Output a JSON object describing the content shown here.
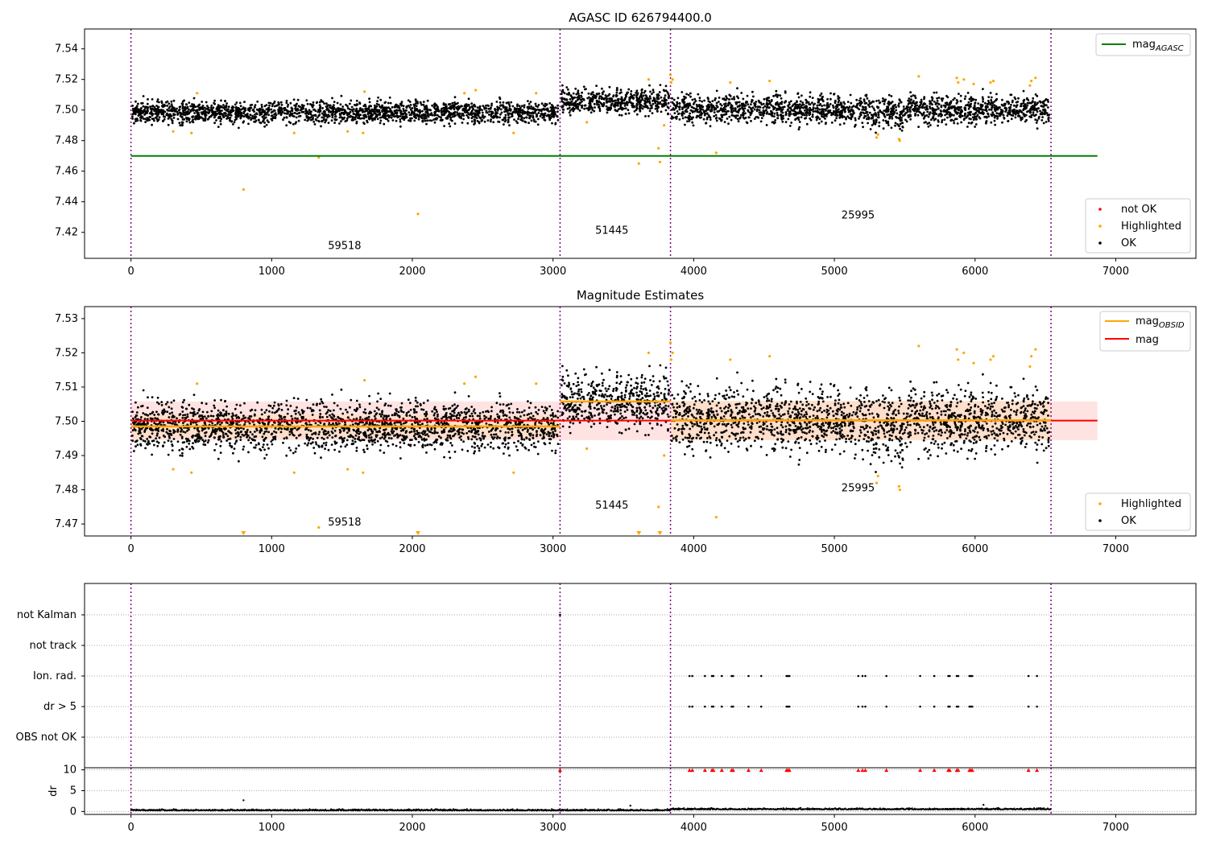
{
  "chart_data": [
    {
      "type": "scatter",
      "title": "AGASC ID 626794400.0",
      "xlim": [
        -330,
        7570
      ],
      "ylim": [
        7.403,
        7.553
      ],
      "x_ticks": [
        0,
        1000,
        2000,
        3000,
        4000,
        5000,
        6000,
        7000
      ],
      "y_ticks": [
        7.42,
        7.44,
        7.46,
        7.48,
        7.5,
        7.52,
        7.54
      ],
      "y_tick_labels": [
        "7.42",
        "7.44",
        "7.46",
        "7.48",
        "7.50",
        "7.52",
        "7.54"
      ],
      "obs_boundaries": [
        0,
        3050,
        3835,
        6540
      ],
      "obs_labels": [
        {
          "x": 1400,
          "y": 7.409,
          "text": "59518"
        },
        {
          "x": 3300,
          "y": 7.419,
          "text": "51445"
        },
        {
          "x": 5050,
          "y": 7.429,
          "text": "25995"
        }
      ],
      "segments": [
        {
          "x0": 0,
          "x1": 3050,
          "mean": 7.4985,
          "spread": 0.0035
        },
        {
          "x0": 3050,
          "x1": 3835,
          "mean": 7.5058,
          "spread": 0.0042
        },
        {
          "x0": 3835,
          "x1": 6540,
          "mean": 7.5005,
          "spread": 0.0045
        }
      ],
      "dips": [
        {
          "x": 5300,
          "depth": 0.01
        },
        {
          "x": 5460,
          "depth": 0.01
        }
      ],
      "highlighted": [
        [
          300,
          7.486
        ],
        [
          430,
          7.485
        ],
        [
          470,
          7.511
        ],
        [
          800,
          7.448
        ],
        [
          1160,
          7.485
        ],
        [
          1335,
          7.469
        ],
        [
          1540,
          7.486
        ],
        [
          1650,
          7.485
        ],
        [
          1660,
          7.512
        ],
        [
          2040,
          7.432
        ],
        [
          2370,
          7.511
        ],
        [
          2450,
          7.513
        ],
        [
          2720,
          7.485
        ],
        [
          2880,
          7.511
        ],
        [
          3240,
          7.492
        ],
        [
          3610,
          7.465
        ],
        [
          3680,
          7.52
        ],
        [
          3750,
          7.475
        ],
        [
          3760,
          7.466
        ],
        [
          3790,
          7.49
        ],
        [
          3835,
          7.523
        ],
        [
          3840,
          7.518
        ],
        [
          3850,
          7.52
        ],
        [
          4160,
          7.472
        ],
        [
          4260,
          7.518
        ],
        [
          4540,
          7.519
        ],
        [
          5300,
          7.482
        ],
        [
          5310,
          7.484
        ],
        [
          5460,
          7.481
        ],
        [
          5465,
          7.48
        ],
        [
          5600,
          7.522
        ],
        [
          5870,
          7.521
        ],
        [
          5880,
          7.518
        ],
        [
          5920,
          7.52
        ],
        [
          5990,
          7.517
        ],
        [
          6110,
          7.518
        ],
        [
          6130,
          7.519
        ],
        [
          6390,
          7.516
        ],
        [
          6400,
          7.519
        ],
        [
          6430,
          7.521
        ]
      ],
      "lines": [
        {
          "name": "mag_AGASC",
          "y": 7.47,
          "x0": 0,
          "x1": 6870,
          "color": "#008000"
        }
      ],
      "legend_upper": {
        "position": "top-right",
        "entries": [
          {
            "label": "mag",
            "sub": "AGASC",
            "color": "#008000"
          }
        ]
      },
      "legend_lower": {
        "position": "bottom-right",
        "entries": [
          {
            "label": "not OK",
            "color": "#ff0000"
          },
          {
            "label": "Highlighted",
            "color": "#ffa500"
          },
          {
            "label": "OK",
            "color": "#000000"
          }
        ]
      }
    },
    {
      "type": "scatter",
      "title": "Magnitude Estimates",
      "xlim": [
        -330,
        7570
      ],
      "ylim": [
        7.4665,
        7.5335
      ],
      "x_ticks": [
        0,
        1000,
        2000,
        3000,
        4000,
        5000,
        6000,
        7000
      ],
      "y_ticks": [
        7.47,
        7.48,
        7.49,
        7.5,
        7.51,
        7.52,
        7.53
      ],
      "y_tick_labels": [
        "7.47",
        "7.48",
        "7.49",
        "7.50",
        "7.51",
        "7.52",
        "7.53"
      ],
      "obs_boundaries": [
        0,
        3050,
        3835,
        6540
      ],
      "obs_labels": [
        {
          "x": 1400,
          "y": 7.4695,
          "text": "59518"
        },
        {
          "x": 3300,
          "y": 7.4745,
          "text": "51445"
        },
        {
          "x": 5050,
          "y": 7.4795,
          "text": "25995"
        }
      ],
      "obs_mags": [
        {
          "x0": 0,
          "x1": 3050,
          "mag": 7.4985
        },
        {
          "x0": 3050,
          "x1": 3835,
          "mag": 7.5058
        },
        {
          "x0": 3835,
          "x1": 6540,
          "mag": 7.5003
        }
      ],
      "mag_line": {
        "y": 7.5002,
        "x0": 0,
        "x1": 6870,
        "band": [
          7.4945,
          7.5058
        ]
      },
      "obs_bands": [
        {
          "x0": 0,
          "x1": 3050,
          "band": [
            7.495,
            7.502
          ]
        },
        {
          "x0": 3835,
          "x1": 6540,
          "band": [
            7.4945,
            7.506
          ]
        }
      ],
      "off_scale": [
        800,
        2040,
        3610,
        3760
      ],
      "legend_upper": {
        "position": "top-right",
        "entries": [
          {
            "label": "mag",
            "sub": "OBSID",
            "color": "#ffa500"
          },
          {
            "label": "mag",
            "sub": "",
            "color": "#ff0000"
          }
        ]
      },
      "legend_lower": {
        "position": "bottom-right",
        "entries": [
          {
            "label": "Highlighted",
            "color": "#ffa500"
          },
          {
            "label": "OK",
            "color": "#000000"
          }
        ]
      }
    },
    {
      "type": "scatter",
      "title": "",
      "xlim": [
        -330,
        7570
      ],
      "flag_labels": [
        "not Kalman",
        "not track",
        "Ion. rad.",
        "dr > 5",
        "OBS not OK"
      ],
      "flag_points": {
        "not Kalman": [
          3050
        ],
        "not track": [],
        "Ion. rad.": [
          3970,
          3990,
          4080,
          4130,
          4140,
          4200,
          4270,
          4280,
          4390,
          4480,
          4660,
          4670,
          4680,
          5170,
          5200,
          5220,
          5370,
          5610,
          5710,
          5810,
          5820,
          5870,
          5880,
          5960,
          5970,
          5980,
          6380,
          6440
        ],
        "dr > 5": [
          3970,
          3990,
          4080,
          4130,
          4140,
          4200,
          4270,
          4280,
          4390,
          4480,
          4660,
          4670,
          4680,
          5170,
          5200,
          5220,
          5370,
          5610,
          5710,
          5810,
          5820,
          5870,
          5880,
          5960,
          5970,
          5980,
          6380,
          6440
        ],
        "OBS not OK": []
      },
      "dr_ylim": [
        -0.7,
        10.5
      ],
      "dr_ticks": [
        0,
        5,
        10
      ],
      "ylabel": "dr",
      "dr_capped": [
        3050,
        3970,
        3990,
        4080,
        4130,
        4140,
        4200,
        4270,
        4280,
        4390,
        4480,
        4660,
        4670,
        4680,
        5170,
        5200,
        5220,
        5370,
        5610,
        5710,
        5810,
        5820,
        5870,
        5880,
        5960,
        5970,
        5980,
        6380,
        6440
      ],
      "dr_outliers": [
        [
          800,
          2.7
        ],
        [
          3550,
          1.4
        ],
        [
          6060,
          1.6
        ]
      ]
    }
  ],
  "colors": {
    "ok": "#000000",
    "highlighted": "#ffa500",
    "not_ok": "#ff0000",
    "agasc": "#008000",
    "boundary": "#800080",
    "band": "#ffcccc"
  }
}
